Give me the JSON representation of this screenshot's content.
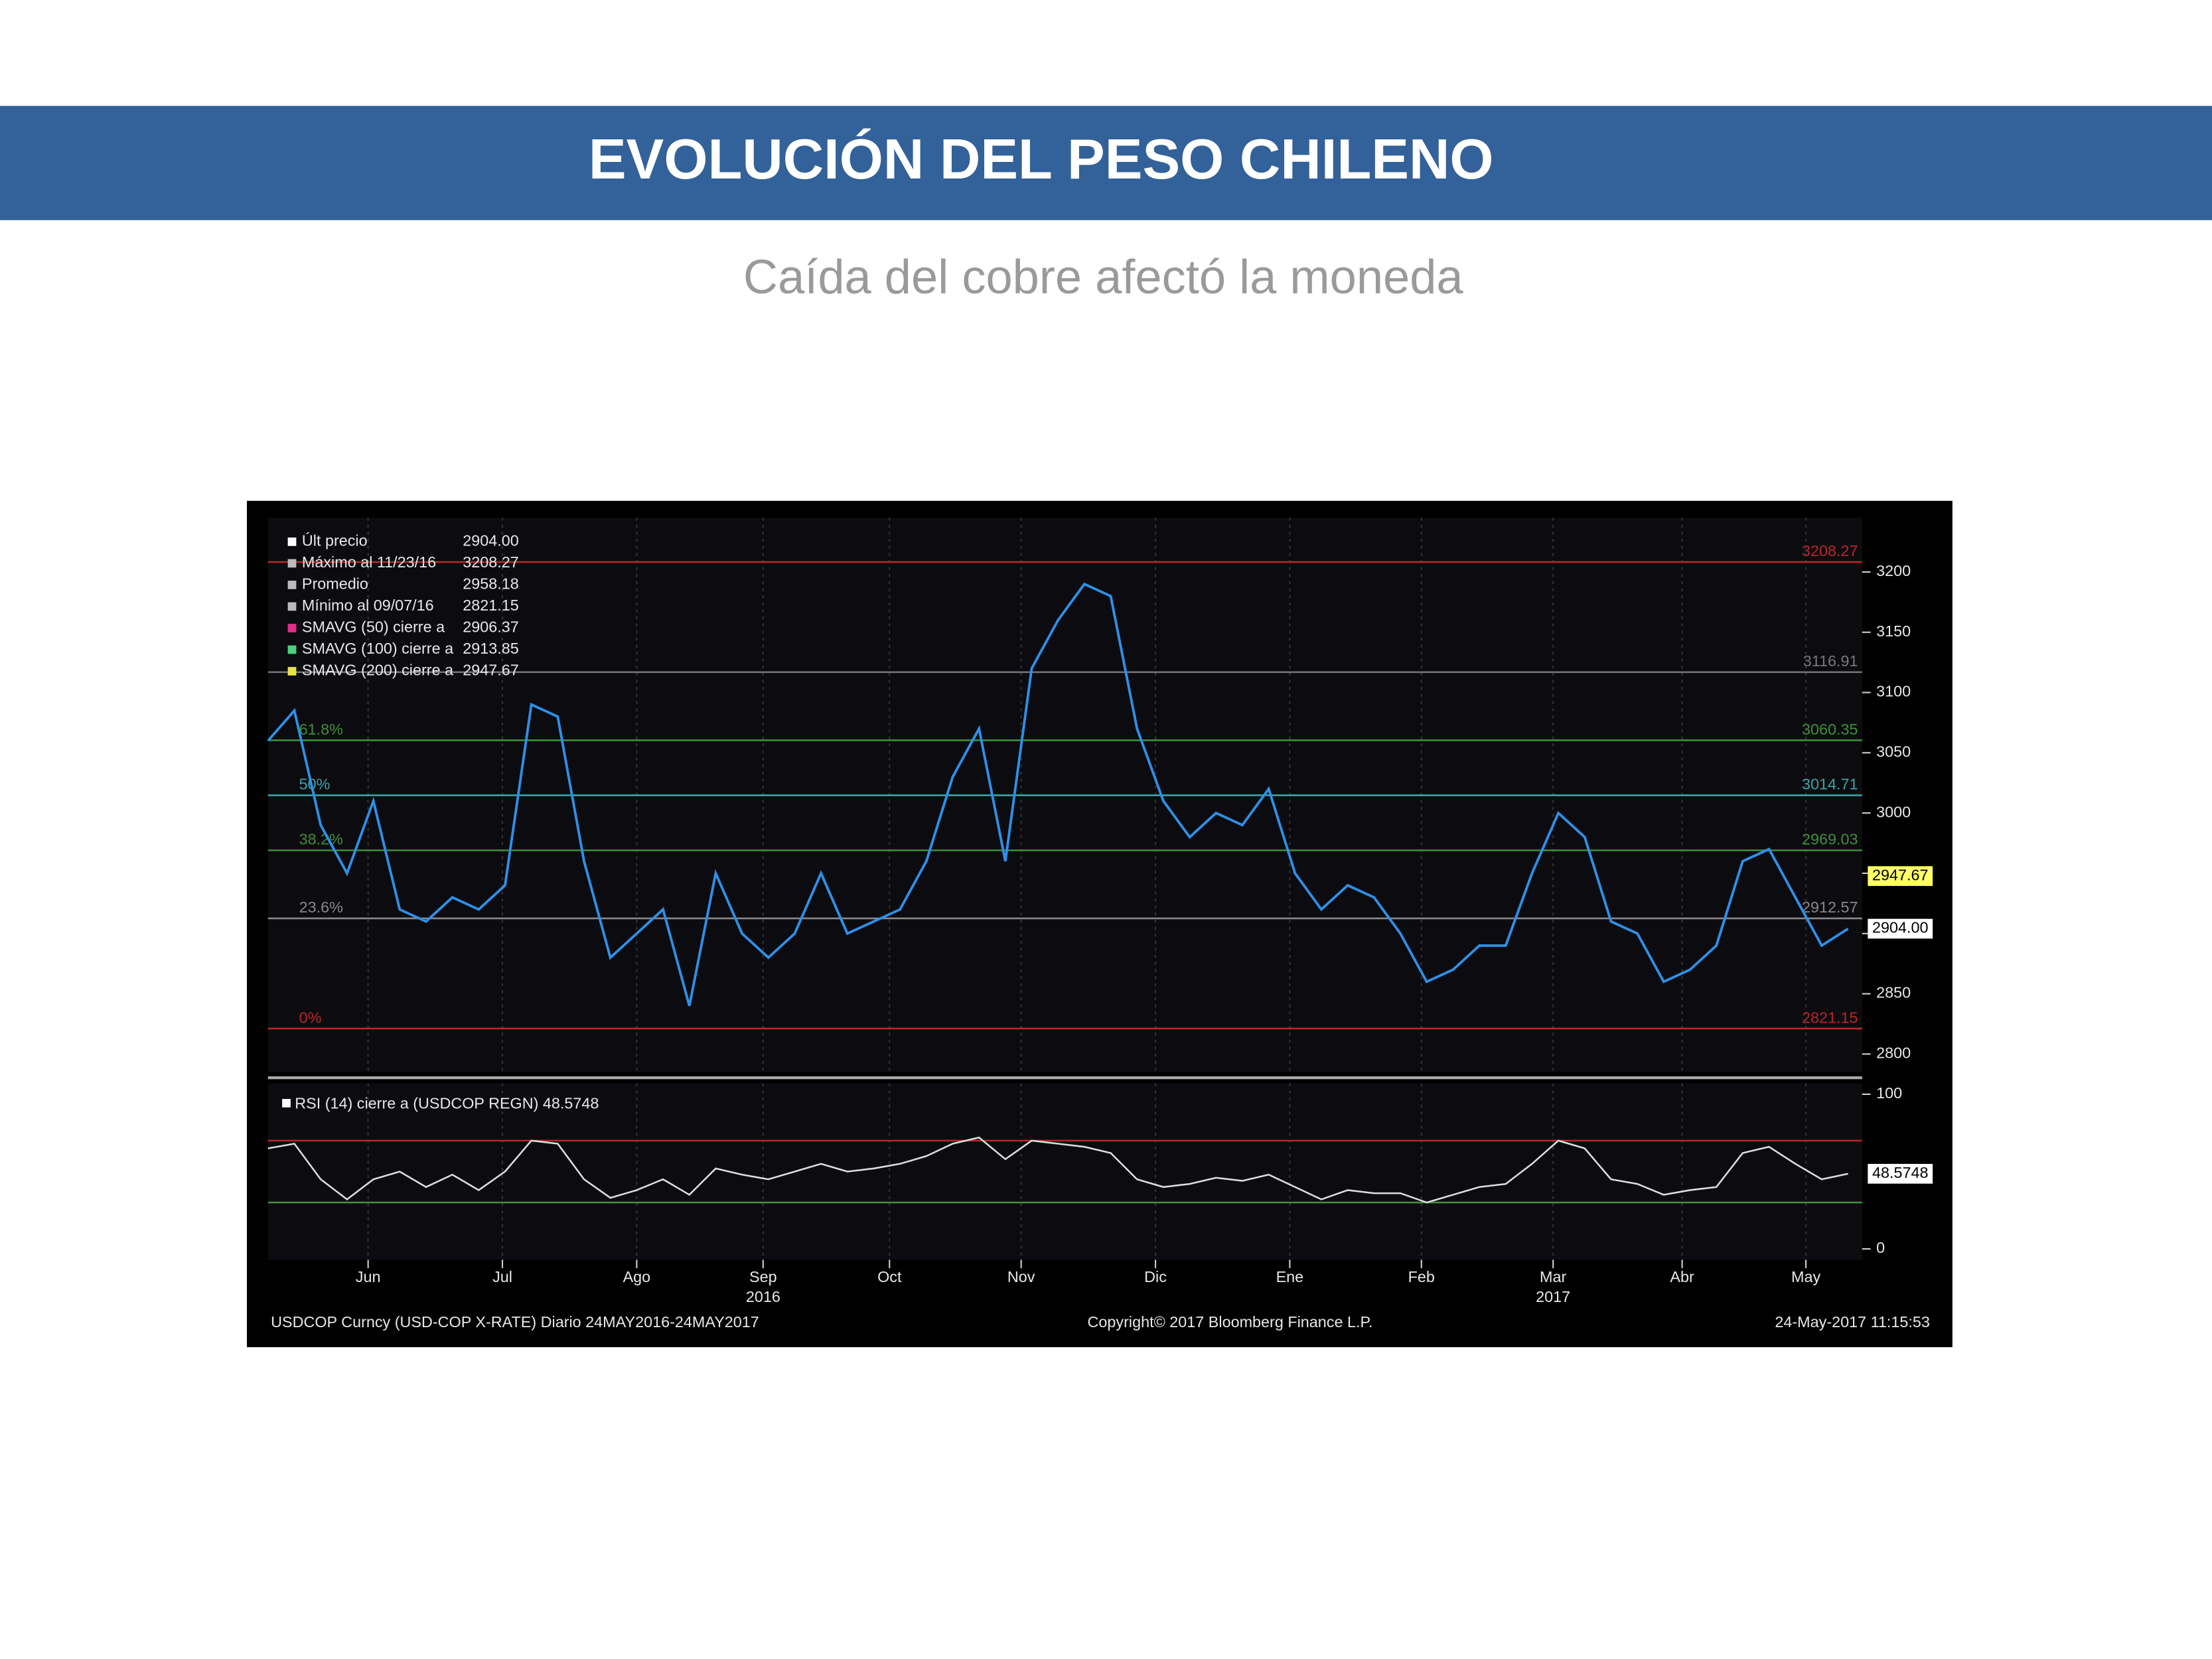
{
  "header": {
    "title": "EVOLUCIÓN DEL PESO CHILENO",
    "subtitle": "Caída del cobre afectó la moneda"
  },
  "chart_data": [
    {
      "type": "line",
      "legend": [
        {
          "label": "Últ precio",
          "value": "2904.00",
          "color": "#ffffff"
        },
        {
          "label": "Máximo al 11/23/16",
          "value": "3208.27",
          "color": "#bbbbbb"
        },
        {
          "label": "Promedio",
          "value": "2958.18",
          "color": "#bbbbbb"
        },
        {
          "label": "Mínimo al 09/07/16",
          "value": "2821.15",
          "color": "#bbbbbb"
        },
        {
          "label": "SMAVG (50) cierre a",
          "value": "2906.37",
          "color": "#e0308a"
        },
        {
          "label": "SMAVG (100) cierre a",
          "value": "2913.85",
          "color": "#4ed07a"
        },
        {
          "label": "SMAVG (200) cierre a",
          "value": "2947.67",
          "color": "#e8e04a"
        }
      ],
      "xlim": [
        0,
        60
      ],
      "xticks": [
        {
          "value": 3.8,
          "label": "Jun"
        },
        {
          "value": 8.9,
          "label": "Jul"
        },
        {
          "value": 14,
          "label": "Ago"
        },
        {
          "value": 18.8,
          "label": "Sep",
          "year": "2016"
        },
        {
          "value": 23.6,
          "label": "Oct"
        },
        {
          "value": 28.6,
          "label": "Nov"
        },
        {
          "value": 33.7,
          "label": "Dic"
        },
        {
          "value": 38.8,
          "label": "Ene"
        },
        {
          "value": 43.8,
          "label": "Feb"
        },
        {
          "value": 48.8,
          "label": "Mar",
          "year": "2017"
        },
        {
          "value": 53.7,
          "label": "Abr"
        },
        {
          "value": 58.4,
          "label": "May"
        }
      ],
      "ylim": [
        2785,
        3245
      ],
      "yticks": [
        2800,
        2850,
        2900,
        2950,
        3000,
        3050,
        3100,
        3150,
        3200
      ],
      "levels": [
        {
          "value": 3208.27,
          "color": "#b8272b"
        },
        {
          "value": 3116.91,
          "color": "#777777"
        },
        {
          "value": 3060.35,
          "label": "61.8%",
          "color": "#3f8f3a"
        },
        {
          "value": 3014.71,
          "label": "50%",
          "color": "#3aa6a6"
        },
        {
          "value": 2969.03,
          "label": "38.2%",
          "color": "#3f8f3a"
        },
        {
          "value": 2912.57,
          "label": "23.6%",
          "color": "#888888"
        },
        {
          "value": 2821.15,
          "label": "0%",
          "color": "#b8272b"
        }
      ],
      "markers": [
        {
          "value": 2947.67,
          "color": "#ffff66"
        },
        {
          "value": 2904,
          "label": "2904.00",
          "color": "#ffffff"
        }
      ],
      "series": [
        {
          "color": "#2f8fe8",
          "values": [
            3060,
            3085,
            2990,
            2950,
            3010,
            2920,
            2910,
            2930,
            2920,
            2940,
            3090,
            3080,
            2960,
            2880,
            2900,
            2920,
            2840,
            2950,
            2900,
            2880,
            2900,
            2950,
            2900,
            2910,
            2920,
            2960,
            3030,
            3070,
            2960,
            3120,
            3160,
            3190,
            3180,
            3070,
            3010,
            2980,
            3000,
            2990,
            3020,
            2950,
            2920,
            2940,
            2930,
            2900,
            2860,
            2870,
            2890,
            2890,
            2950,
            3000,
            2980,
            2910,
            2900,
            2860,
            2870,
            2890,
            2960,
            2970,
            2930,
            2890,
            2904
          ]
        }
      ]
    },
    {
      "type": "line",
      "title": "RSI (14) cierre a (USDCOP REGN) 48.5748",
      "xlim": [
        0,
        60
      ],
      "ylim": [
        -7,
        107
      ],
      "yticks": [
        0,
        100
      ],
      "levels": [
        {
          "value": 70,
          "color": "#b8272b"
        },
        {
          "value": 30,
          "color": "#3f8f3a"
        }
      ],
      "markers": [
        {
          "value": 48.5748,
          "color": "#ffffff"
        }
      ],
      "series": [
        {
          "color": "#dddddd",
          "values": [
            65,
            68,
            45,
            32,
            45,
            50,
            40,
            48,
            38,
            50,
            70,
            68,
            45,
            33,
            38,
            45,
            35,
            52,
            48,
            45,
            50,
            55,
            50,
            52,
            55,
            60,
            68,
            72,
            58,
            70,
            68,
            66,
            62,
            45,
            40,
            42,
            46,
            44,
            48,
            40,
            32,
            38,
            36,
            36,
            30,
            35,
            40,
            42,
            55,
            70,
            65,
            45,
            42,
            35,
            38,
            40,
            62,
            66,
            55,
            45,
            48.5748
          ]
        }
      ]
    }
  ],
  "footer": {
    "left": "USDCOP Curncy (USD-COP X-RATE)  Diario 24MAY2016-24MAY2017",
    "center": "Copyright© 2017 Bloomberg Finance L.P.",
    "right": "24-May-2017 11:15:53"
  }
}
